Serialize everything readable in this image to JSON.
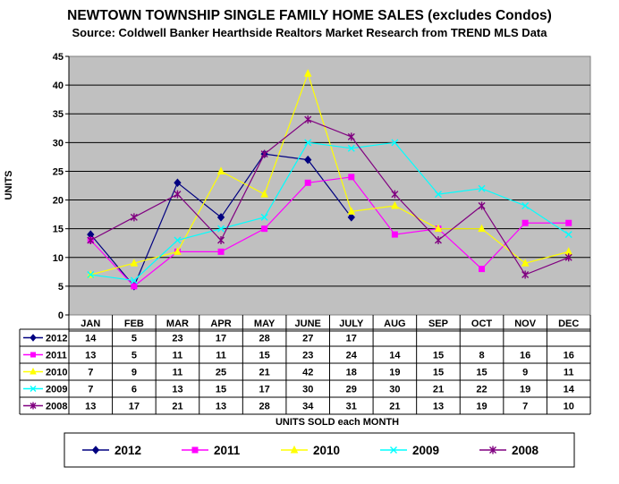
{
  "chart_data": {
    "type": "line",
    "title": "NEWTOWN TOWNSHIP SINGLE FAMILY HOME SALES (excludes Condos)",
    "subtitle": "Source: Coldwell Banker Hearthside Realtors Market Research from TREND MLS Data",
    "ylabel": "UNITS",
    "xlabel": "UNITS SOLD each MONTH",
    "ylim": [
      0,
      45
    ],
    "yticks": [
      0,
      5,
      10,
      15,
      20,
      25,
      30,
      35,
      40,
      45
    ],
    "grid": true,
    "legend_position": "bottom",
    "categories": [
      "JAN",
      "FEB",
      "MAR",
      "APR",
      "MAY",
      "JUNE",
      "JULY",
      "AUG",
      "SEP",
      "OCT",
      "NOV",
      "DEC"
    ],
    "series": [
      {
        "name": "2012",
        "color": "#000080",
        "marker": "diamond",
        "values": [
          14,
          5,
          23,
          17,
          28,
          27,
          17,
          null,
          null,
          null,
          null,
          null
        ]
      },
      {
        "name": "2011",
        "color": "#ff00ff",
        "marker": "square",
        "values": [
          13,
          5,
          11,
          11,
          15,
          23,
          24,
          14,
          15,
          8,
          16,
          16
        ]
      },
      {
        "name": "2010",
        "color": "#ffff00",
        "marker": "triangle",
        "values": [
          7,
          9,
          11,
          25,
          21,
          42,
          18,
          19,
          15,
          15,
          9,
          11
        ]
      },
      {
        "name": "2009",
        "color": "#00ffff",
        "marker": "x",
        "values": [
          7,
          6,
          13,
          15,
          17,
          30,
          29,
          30,
          21,
          22,
          19,
          14
        ]
      },
      {
        "name": "2008",
        "color": "#800080",
        "marker": "star",
        "values": [
          13,
          17,
          21,
          13,
          28,
          34,
          31,
          21,
          13,
          19,
          7,
          10
        ]
      }
    ]
  }
}
